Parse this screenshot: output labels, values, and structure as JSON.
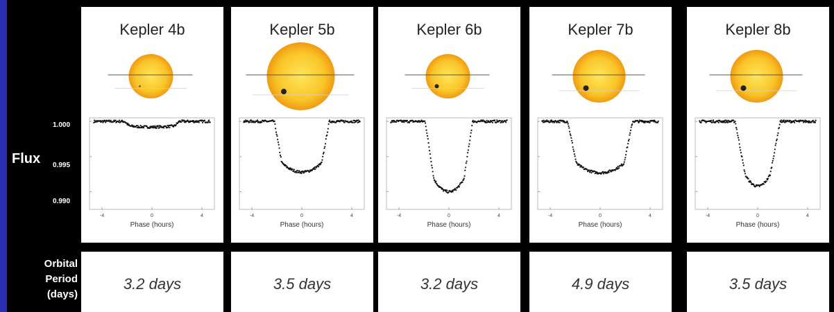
{
  "y_axis": {
    "label": "Flux",
    "ticks": [
      "1.000",
      "0.995",
      "0.990"
    ]
  },
  "orbital_label_lines": [
    "Orbital",
    "Period",
    "(days)"
  ],
  "chart_data": [
    {
      "type": "scatter",
      "title": "Kepler 4b",
      "xlabel": "Phase (hours)",
      "x_ticks": [
        "-4",
        "0",
        "4"
      ],
      "y_ticks": [
        1.0,
        0.995,
        0.99
      ],
      "xlim": [
        -5,
        5
      ],
      "ylim": [
        0.9875,
        1.0005
      ],
      "transit": {
        "depth": 0.0008,
        "half_width": 2.2,
        "ingress": 0.4
      },
      "orbital_period": "3.2 days",
      "star_size": "small",
      "planet_size": "tiny"
    },
    {
      "type": "scatter",
      "title": "Kepler 5b",
      "xlabel": "Phase (hours)",
      "x_ticks": [
        "-4",
        "0",
        "4"
      ],
      "y_ticks": [
        1.0,
        0.995,
        0.99
      ],
      "xlim": [
        -5,
        5
      ],
      "ylim": [
        0.9875,
        1.0005
      ],
      "transit": {
        "depth": 0.0072,
        "half_width": 2.2,
        "ingress": 0.6
      },
      "orbital_period": "3.5 days",
      "star_size": "large",
      "planet_size": "medium"
    },
    {
      "type": "scatter",
      "title": "Kepler 6b",
      "xlabel": "Phase (hours)",
      "x_ticks": [
        "-4",
        "0",
        "4"
      ],
      "y_ticks": [
        1.0,
        0.995,
        0.99
      ],
      "xlim": [
        -5,
        5
      ],
      "ylim": [
        0.9875,
        1.0005
      ],
      "transit": {
        "depth": 0.01,
        "half_width": 1.9,
        "ingress": 0.7
      },
      "orbital_period": "3.2 days",
      "star_size": "small",
      "planet_size": "small"
    },
    {
      "type": "scatter",
      "title": "Kepler 7b",
      "xlabel": "Phase (hours)",
      "x_ticks": [
        "-4",
        "0",
        "4"
      ],
      "y_ticks": [
        1.0,
        0.995,
        0.99
      ],
      "xlim": [
        -5,
        5
      ],
      "ylim": [
        0.9875,
        1.0005
      ],
      "transit": {
        "depth": 0.0073,
        "half_width": 2.6,
        "ingress": 0.7
      },
      "orbital_period": "4.9 days",
      "star_size": "medium",
      "planet_size": "medium"
    },
    {
      "type": "scatter",
      "title": "Kepler 8b",
      "xlabel": "Phase (hours)",
      "x_ticks": [
        "-4",
        "0",
        "4"
      ],
      "y_ticks": [
        1.0,
        0.995,
        0.99
      ],
      "xlim": [
        -5,
        5
      ],
      "ylim": [
        0.9875,
        1.0005
      ],
      "transit": {
        "depth": 0.0092,
        "half_width": 1.8,
        "ingress": 0.8
      },
      "orbital_period": "3.5 days",
      "star_size": "medium",
      "planet_size": "medium"
    }
  ]
}
